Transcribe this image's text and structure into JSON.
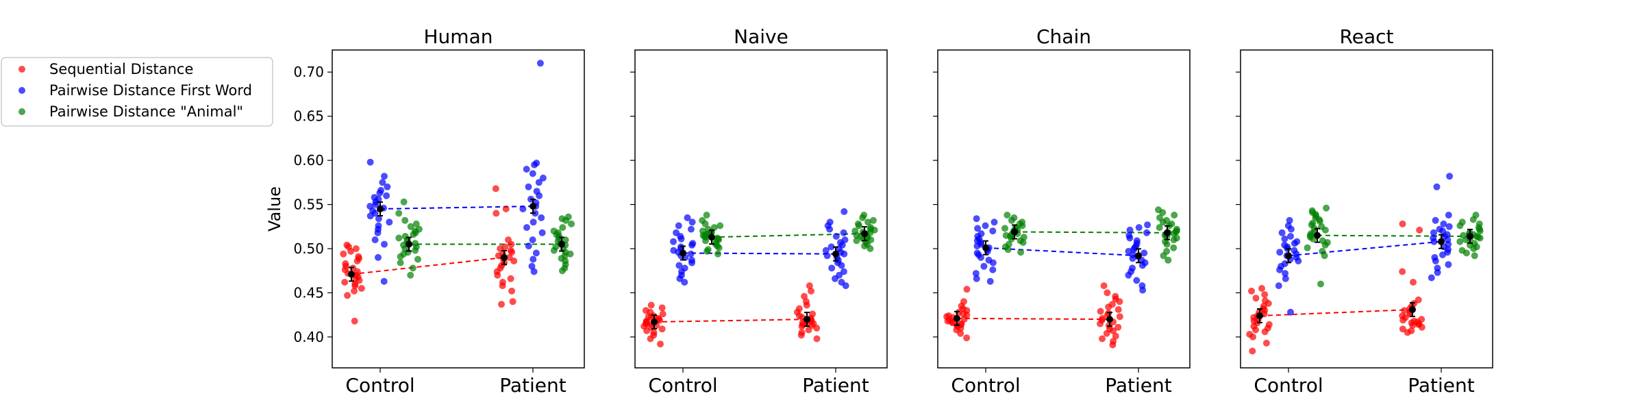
{
  "chart_data": {
    "type": "scatter",
    "ylabel": "Value",
    "yticks": [
      0.4,
      0.45,
      0.5,
      0.55,
      0.6,
      0.65,
      0.7
    ],
    "ylim": [
      0.365,
      0.725
    ],
    "categories": [
      "Control",
      "Patient"
    ],
    "legend": {
      "placement": "upper-left-outside",
      "entries": [
        {
          "label": "Sequential Distance",
          "color": "#ff0000"
        },
        {
          "label": "Pairwise Distance First Word",
          "color": "#0000ff"
        },
        {
          "label": "Pairwise Distance \"Animal\"",
          "color": "#008000"
        }
      ]
    },
    "panels": [
      {
        "title": "Human",
        "means": {
          "sequential": {
            "Control": 0.471,
            "Patient": 0.49
          },
          "first_word": {
            "Control": 0.545,
            "Patient": 0.548
          },
          "animal": {
            "Control": 0.505,
            "Patient": 0.505
          }
        },
        "points": {
          "sequential": {
            "Control": [
              0.418,
              0.447,
              0.452,
              0.455,
              0.458,
              0.46,
              0.462,
              0.464,
              0.466,
              0.468,
              0.47,
              0.472,
              0.474,
              0.476,
              0.478,
              0.48,
              0.483,
              0.486,
              0.489,
              0.491,
              0.494,
              0.497,
              0.5,
              0.502,
              0.504
            ],
            "Patient": [
              0.437,
              0.44,
              0.452,
              0.458,
              0.462,
              0.466,
              0.47,
              0.474,
              0.478,
              0.481,
              0.484,
              0.486,
              0.488,
              0.49,
              0.492,
              0.494,
              0.496,
              0.498,
              0.5,
              0.502,
              0.505,
              0.51,
              0.54,
              0.545,
              0.568
            ]
          },
          "first_word": {
            "Control": [
              0.463,
              0.49,
              0.505,
              0.51,
              0.518,
              0.522,
              0.526,
              0.53,
              0.534,
              0.537,
              0.54,
              0.543,
              0.546,
              0.548,
              0.55,
              0.553,
              0.556,
              0.558,
              0.56,
              0.563,
              0.566,
              0.57,
              0.575,
              0.582,
              0.598
            ],
            "Patient": [
              0.474,
              0.48,
              0.488,
              0.495,
              0.503,
              0.51,
              0.518,
              0.524,
              0.53,
              0.535,
              0.54,
              0.545,
              0.548,
              0.552,
              0.556,
              0.56,
              0.565,
              0.57,
              0.575,
              0.58,
              0.585,
              0.59,
              0.595,
              0.597,
              0.71
            ]
          },
          "animal": {
            "Control": [
              0.47,
              0.478,
              0.484,
              0.488,
              0.491,
              0.494,
              0.496,
              0.498,
              0.5,
              0.502,
              0.504,
              0.506,
              0.508,
              0.51,
              0.512,
              0.514,
              0.516,
              0.518,
              0.52,
              0.522,
              0.525,
              0.528,
              0.532,
              0.54,
              0.553
            ],
            "Patient": [
              0.475,
              0.478,
              0.482,
              0.486,
              0.489,
              0.492,
              0.494,
              0.496,
              0.498,
              0.5,
              0.502,
              0.504,
              0.506,
              0.508,
              0.51,
              0.512,
              0.514,
              0.516,
              0.518,
              0.52,
              0.524,
              0.528,
              0.532,
              0.534,
              0.536
            ]
          }
        }
      },
      {
        "title": "Naive",
        "means": {
          "sequential": {
            "Control": 0.417,
            "Patient": 0.42
          },
          "first_word": {
            "Control": 0.495,
            "Patient": 0.494
          },
          "animal": {
            "Control": 0.513,
            "Patient": 0.517
          }
        },
        "points": {
          "sequential": {
            "Control": [
              0.392,
              0.398,
              0.402,
              0.405,
              0.407,
              0.409,
              0.411,
              0.412,
              0.413,
              0.414,
              0.415,
              0.416,
              0.417,
              0.418,
              0.419,
              0.42,
              0.421,
              0.422,
              0.423,
              0.424,
              0.426,
              0.428,
              0.43,
              0.433,
              0.436
            ],
            "Patient": [
              0.398,
              0.402,
              0.405,
              0.408,
              0.41,
              0.412,
              0.413,
              0.414,
              0.415,
              0.416,
              0.417,
              0.418,
              0.419,
              0.42,
              0.421,
              0.422,
              0.424,
              0.426,
              0.428,
              0.432,
              0.436,
              0.44,
              0.446,
              0.452,
              0.458
            ]
          },
          "first_word": {
            "Control": [
              0.462,
              0.466,
              0.47,
              0.474,
              0.478,
              0.481,
              0.484,
              0.487,
              0.49,
              0.492,
              0.494,
              0.496,
              0.498,
              0.5,
              0.502,
              0.504,
              0.506,
              0.508,
              0.511,
              0.514,
              0.518,
              0.522,
              0.526,
              0.53,
              0.535
            ],
            "Patient": [
              0.458,
              0.462,
              0.466,
              0.47,
              0.474,
              0.478,
              0.481,
              0.484,
              0.487,
              0.49,
              0.492,
              0.494,
              0.496,
              0.498,
              0.5,
              0.502,
              0.504,
              0.507,
              0.51,
              0.514,
              0.518,
              0.522,
              0.526,
              0.53,
              0.542
            ]
          },
          "animal": {
            "Control": [
              0.494,
              0.497,
              0.499,
              0.501,
              0.503,
              0.505,
              0.507,
              0.509,
              0.51,
              0.511,
              0.512,
              0.513,
              0.514,
              0.515,
              0.516,
              0.517,
              0.518,
              0.519,
              0.52,
              0.522,
              0.524,
              0.526,
              0.528,
              0.532,
              0.538
            ],
            "Patient": [
              0.5,
              0.503,
              0.505,
              0.507,
              0.509,
              0.51,
              0.511,
              0.512,
              0.513,
              0.514,
              0.515,
              0.516,
              0.517,
              0.518,
              0.519,
              0.52,
              0.521,
              0.522,
              0.524,
              0.526,
              0.528,
              0.53,
              0.532,
              0.535,
              0.538
            ]
          }
        }
      },
      {
        "title": "Chain",
        "means": {
          "sequential": {
            "Control": 0.421,
            "Patient": 0.42
          },
          "first_word": {
            "Control": 0.501,
            "Patient": 0.492
          },
          "animal": {
            "Control": 0.519,
            "Patient": 0.518
          }
        },
        "points": {
          "sequential": {
            "Control": [
              0.399,
              0.404,
              0.408,
              0.41,
              0.412,
              0.413,
              0.414,
              0.415,
              0.416,
              0.417,
              0.418,
              0.419,
              0.42,
              0.421,
              0.422,
              0.423,
              0.424,
              0.425,
              0.426,
              0.428,
              0.43,
              0.432,
              0.435,
              0.44,
              0.454
            ],
            "Patient": [
              0.391,
              0.395,
              0.398,
              0.401,
              0.404,
              0.407,
              0.409,
              0.411,
              0.413,
              0.415,
              0.417,
              0.419,
              0.421,
              0.423,
              0.425,
              0.427,
              0.429,
              0.431,
              0.434,
              0.437,
              0.44,
              0.443,
              0.446,
              0.45,
              0.458
            ]
          },
          "first_word": {
            "Control": [
              0.463,
              0.466,
              0.472,
              0.476,
              0.48,
              0.484,
              0.487,
              0.49,
              0.493,
              0.495,
              0.497,
              0.499,
              0.501,
              0.503,
              0.505,
              0.507,
              0.509,
              0.511,
              0.514,
              0.517,
              0.52,
              0.523,
              0.526,
              0.53,
              0.534
            ],
            "Patient": [
              0.453,
              0.458,
              0.464,
              0.47,
              0.474,
              0.478,
              0.481,
              0.484,
              0.487,
              0.489,
              0.491,
              0.493,
              0.495,
              0.497,
              0.499,
              0.501,
              0.503,
              0.506,
              0.509,
              0.512,
              0.515,
              0.518,
              0.521,
              0.524,
              0.527
            ]
          },
          "animal": {
            "Control": [
              0.496,
              0.499,
              0.502,
              0.505,
              0.507,
              0.509,
              0.511,
              0.513,
              0.514,
              0.515,
              0.516,
              0.517,
              0.518,
              0.519,
              0.52,
              0.521,
              0.522,
              0.523,
              0.524,
              0.526,
              0.528,
              0.53,
              0.532,
              0.535,
              0.538
            ],
            "Patient": [
              0.487,
              0.492,
              0.497,
              0.501,
              0.505,
              0.508,
              0.51,
              0.512,
              0.514,
              0.515,
              0.516,
              0.517,
              0.518,
              0.519,
              0.52,
              0.522,
              0.524,
              0.526,
              0.528,
              0.53,
              0.532,
              0.535,
              0.538,
              0.541,
              0.544
            ]
          }
        }
      },
      {
        "title": "React",
        "means": {
          "sequential": {
            "Control": 0.424,
            "Patient": 0.431
          },
          "first_word": {
            "Control": 0.492,
            "Patient": 0.508
          },
          "animal": {
            "Control": 0.515,
            "Patient": 0.514
          }
        },
        "points": {
          "sequential": {
            "Control": [
              0.384,
              0.393,
              0.4,
              0.403,
              0.406,
              0.408,
              0.41,
              0.412,
              0.414,
              0.416,
              0.418,
              0.42,
              0.422,
              0.424,
              0.426,
              0.428,
              0.43,
              0.432,
              0.435,
              0.438,
              0.441,
              0.444,
              0.448,
              0.452,
              0.455
            ],
            "Patient": [
              0.405,
              0.407,
              0.409,
              0.411,
              0.413,
              0.414,
              0.415,
              0.416,
              0.417,
              0.418,
              0.419,
              0.42,
              0.422,
              0.424,
              0.426,
              0.428,
              0.43,
              0.432,
              0.435,
              0.438,
              0.442,
              0.462,
              0.474,
              0.521,
              0.528
            ]
          },
          "first_word": {
            "Control": [
              0.428,
              0.458,
              0.466,
              0.472,
              0.476,
              0.48,
              0.483,
              0.486,
              0.488,
              0.49,
              0.492,
              0.494,
              0.496,
              0.498,
              0.5,
              0.502,
              0.504,
              0.506,
              0.508,
              0.511,
              0.514,
              0.518,
              0.522,
              0.526,
              0.532
            ],
            "Patient": [
              0.467,
              0.473,
              0.478,
              0.482,
              0.486,
              0.49,
              0.493,
              0.496,
              0.499,
              0.502,
              0.505,
              0.508,
              0.51,
              0.512,
              0.514,
              0.516,
              0.518,
              0.52,
              0.522,
              0.525,
              0.528,
              0.532,
              0.538,
              0.57,
              0.582
            ]
          },
          "animal": {
            "Control": [
              0.46,
              0.492,
              0.497,
              0.501,
              0.504,
              0.507,
              0.509,
              0.511,
              0.513,
              0.515,
              0.517,
              0.519,
              0.521,
              0.523,
              0.525,
              0.527,
              0.529,
              0.531,
              0.533,
              0.535,
              0.537,
              0.539,
              0.541,
              0.543,
              0.546
            ],
            "Patient": [
              0.492,
              0.495,
              0.498,
              0.5,
              0.502,
              0.504,
              0.506,
              0.508,
              0.51,
              0.511,
              0.512,
              0.513,
              0.514,
              0.515,
              0.516,
              0.517,
              0.518,
              0.52,
              0.522,
              0.524,
              0.526,
              0.528,
              0.53,
              0.533,
              0.538
            ]
          }
        }
      }
    ]
  },
  "colors": {
    "sequential": "#ff0000",
    "first_word": "#0000ff",
    "animal": "#008000"
  }
}
